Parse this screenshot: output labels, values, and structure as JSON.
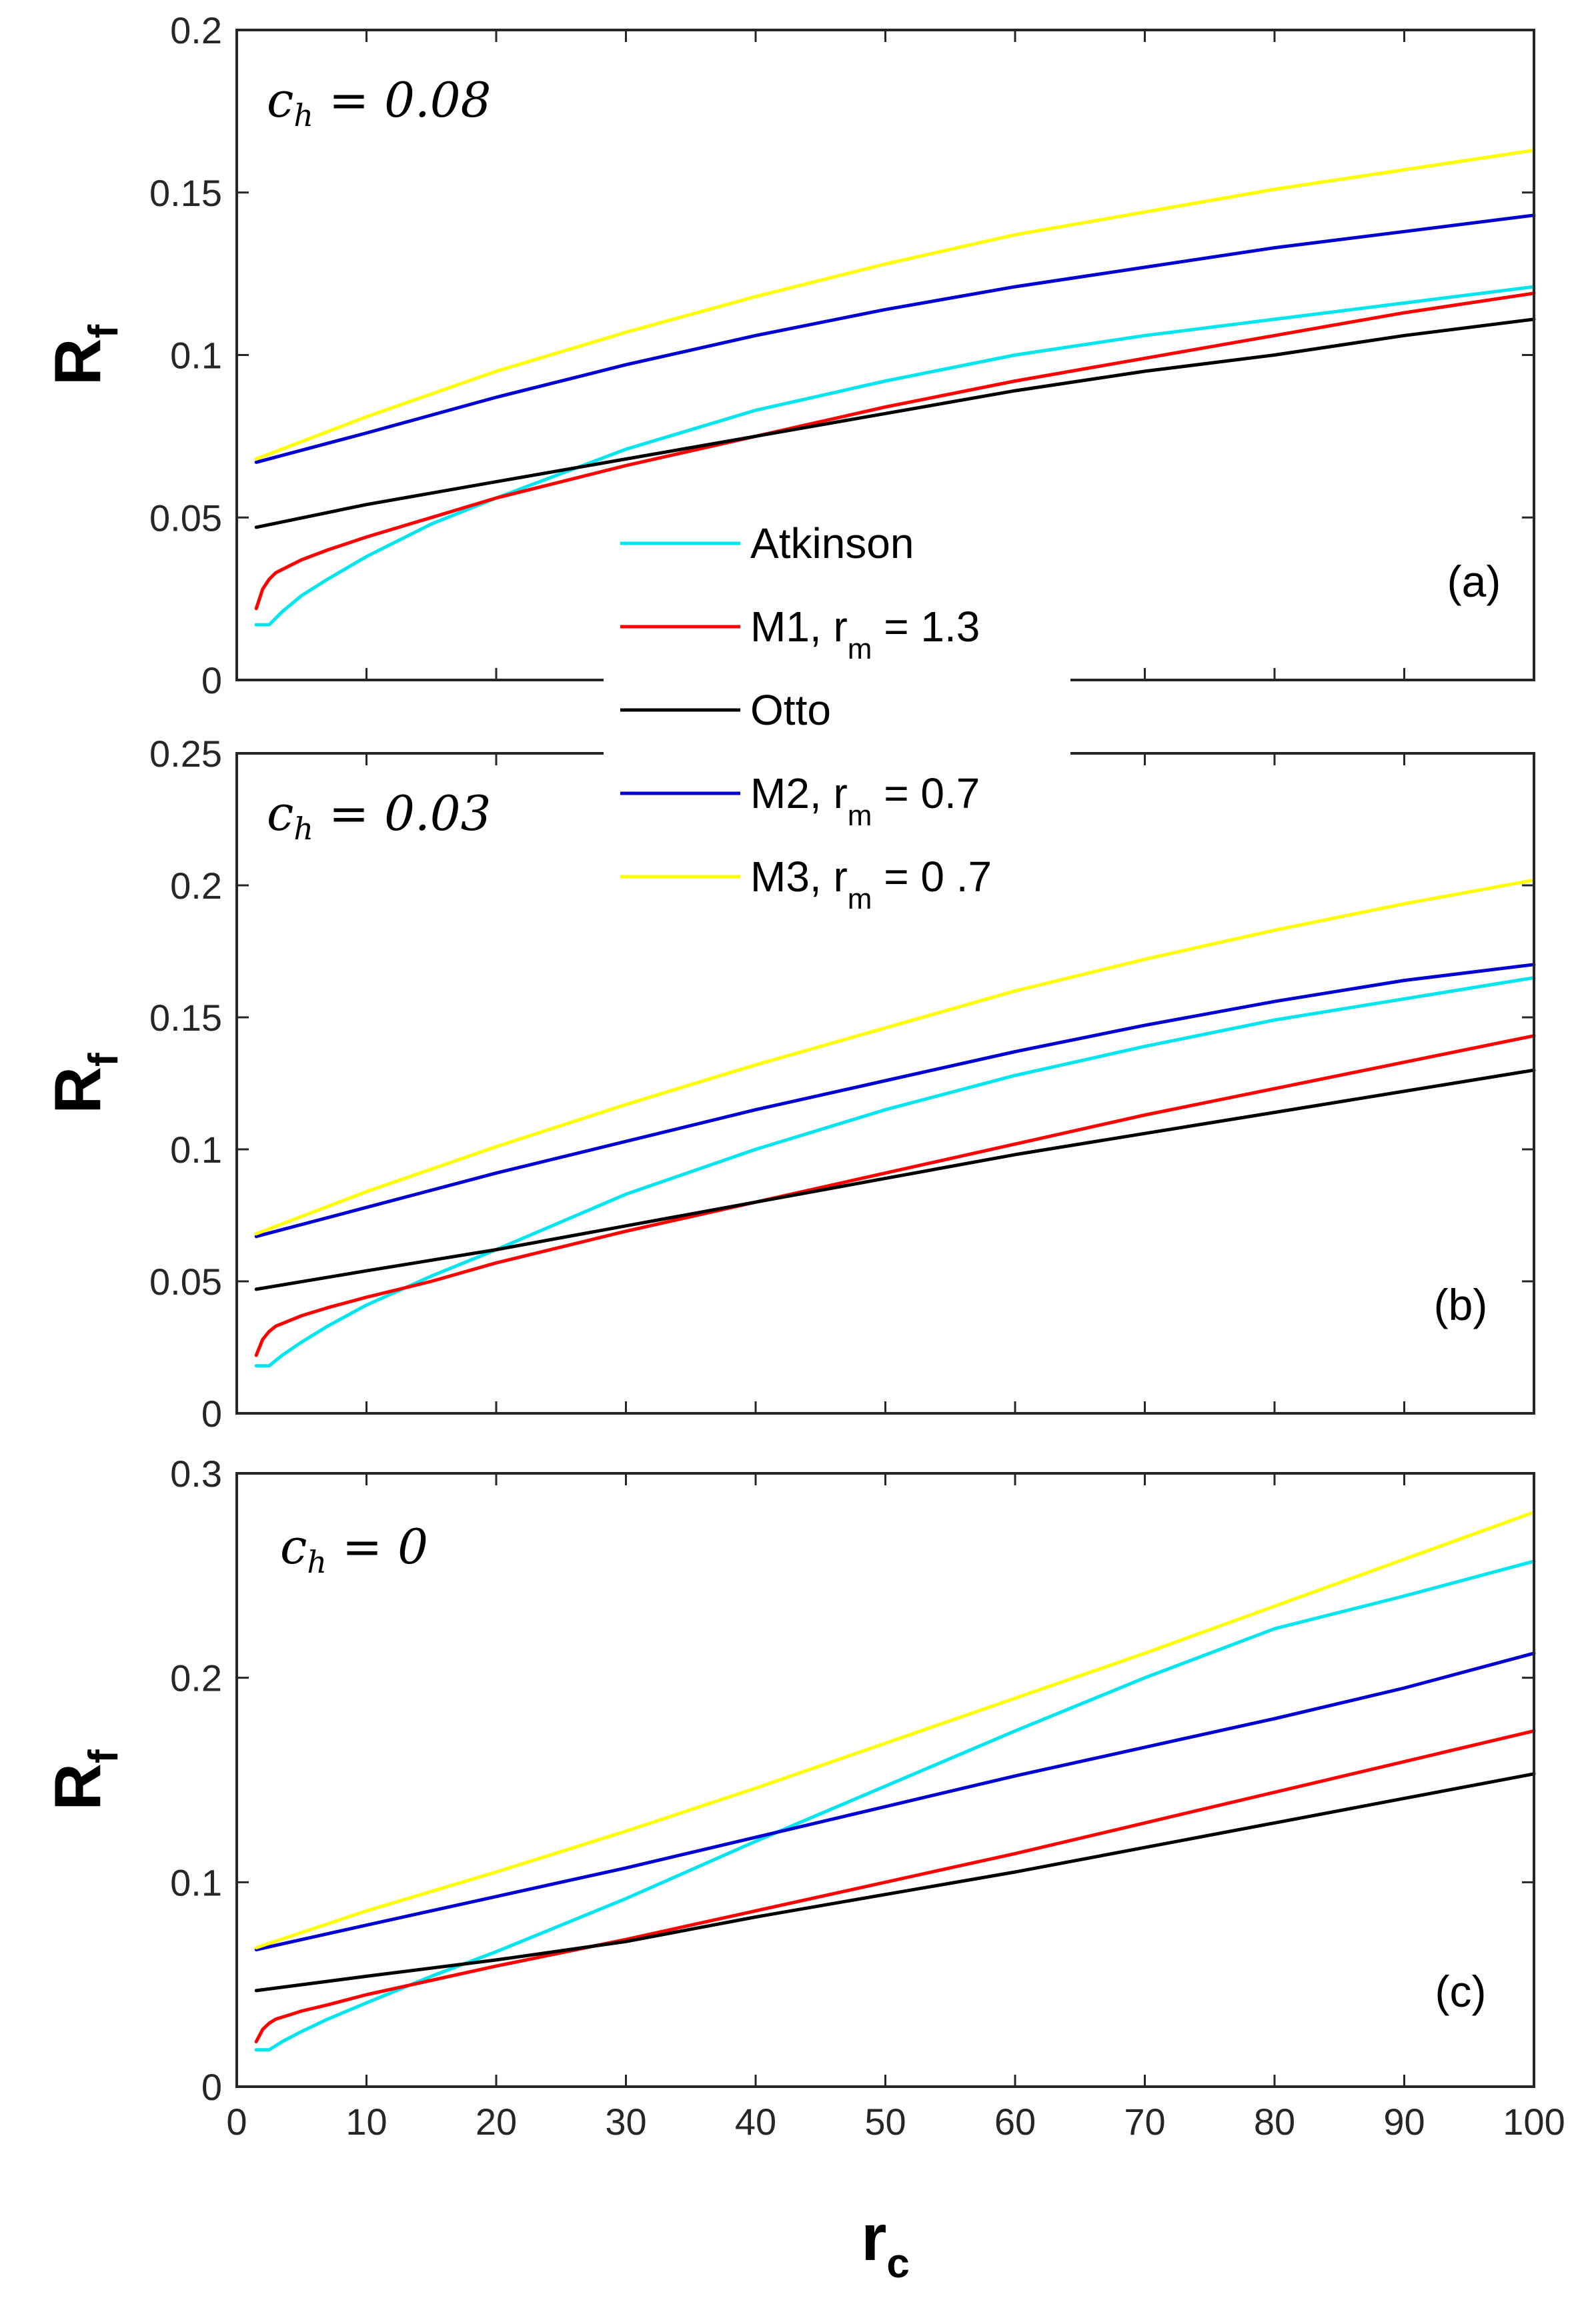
{
  "chart_data": [
    {
      "type": "line",
      "panel_label": "(a)",
      "annotation": {
        "var": "c",
        "sub": "h",
        "rest": " = 0.08"
      },
      "ylabel": {
        "main": "R",
        "sub": "f"
      },
      "xlabel": "",
      "xlim": [
        0,
        100
      ],
      "ylim": [
        0,
        0.2
      ],
      "yticks": [
        "0",
        "0.05",
        "0.1",
        "0.15",
        "0.2"
      ],
      "xticks": [],
      "series": [
        {
          "name": "Atkinson",
          "color": "#00e5ee",
          "x": [
            1.5,
            2.5,
            3.5,
            5,
            7,
            10,
            15,
            20,
            30,
            40,
            50,
            60,
            70,
            80,
            90,
            100
          ],
          "y": [
            0.017,
            0.017,
            0.021,
            0.026,
            0.031,
            0.038,
            0.048,
            0.056,
            0.071,
            0.083,
            0.092,
            0.1,
            0.106,
            0.111,
            0.116,
            0.121
          ]
        },
        {
          "name": "M1, r_m = 1.3",
          "color": "#ff0000",
          "x": [
            1.5,
            2,
            2.5,
            3,
            4,
            5,
            7,
            10,
            15,
            20,
            30,
            40,
            50,
            60,
            70,
            80,
            90,
            100
          ],
          "y": [
            0.022,
            0.028,
            0.031,
            0.033,
            0.035,
            0.037,
            0.04,
            0.044,
            0.05,
            0.056,
            0.066,
            0.075,
            0.084,
            0.092,
            0.099,
            0.106,
            0.113,
            0.119
          ]
        },
        {
          "name": "Otto",
          "color": "#000000",
          "x": [
            1.5,
            10,
            20,
            30,
            40,
            50,
            60,
            70,
            80,
            90,
            100
          ],
          "y": [
            0.047,
            0.054,
            0.061,
            0.068,
            0.075,
            0.082,
            0.089,
            0.095,
            0.1,
            0.106,
            0.111
          ]
        },
        {
          "name": "M2, r_m = 0.7",
          "color": "#0000d0",
          "x": [
            1.5,
            10,
            20,
            30,
            40,
            50,
            60,
            70,
            80,
            90,
            100
          ],
          "y": [
            0.067,
            0.076,
            0.087,
            0.097,
            0.106,
            0.114,
            0.121,
            0.127,
            0.133,
            0.138,
            0.143
          ]
        },
        {
          "name": "M3, r_m = 0 .7",
          "color": "#ffff00",
          "x": [
            1.5,
            10,
            20,
            30,
            40,
            50,
            60,
            70,
            80,
            90,
            100
          ],
          "y": [
            0.068,
            0.081,
            0.095,
            0.107,
            0.118,
            0.128,
            0.137,
            0.144,
            0.151,
            0.157,
            0.163
          ]
        }
      ]
    },
    {
      "type": "line",
      "panel_label": "(b)",
      "annotation": {
        "var": "c",
        "sub": "h",
        "rest": " = 0.03"
      },
      "ylabel": {
        "main": "R",
        "sub": "f"
      },
      "xlabel": "",
      "xlim": [
        0,
        100
      ],
      "ylim": [
        0,
        0.25
      ],
      "yticks": [
        "0",
        "0.05",
        "0.1",
        "0.15",
        "0.2",
        "0.25"
      ],
      "xticks": [],
      "series": [
        {
          "name": "Atkinson",
          "color": "#00e5ee",
          "x": [
            1.5,
            2.5,
            3.5,
            5,
            7,
            10,
            15,
            20,
            30,
            40,
            50,
            60,
            70,
            80,
            90,
            100
          ],
          "y": [
            0.018,
            0.018,
            0.022,
            0.027,
            0.033,
            0.041,
            0.052,
            0.062,
            0.083,
            0.1,
            0.115,
            0.128,
            0.139,
            0.149,
            0.157,
            0.165
          ]
        },
        {
          "name": "M1, r_m = 1.3",
          "color": "#ff0000",
          "x": [
            1.5,
            2,
            2.5,
            3,
            4,
            5,
            7,
            10,
            15,
            20,
            30,
            40,
            50,
            60,
            70,
            80,
            90,
            100
          ],
          "y": [
            0.022,
            0.028,
            0.031,
            0.033,
            0.035,
            0.037,
            0.04,
            0.044,
            0.05,
            0.057,
            0.069,
            0.08,
            0.091,
            0.102,
            0.113,
            0.123,
            0.133,
            0.143
          ]
        },
        {
          "name": "Otto",
          "color": "#000000",
          "x": [
            1.5,
            10,
            20,
            30,
            40,
            50,
            60,
            70,
            80,
            90,
            100
          ],
          "y": [
            0.047,
            0.054,
            0.062,
            0.071,
            0.08,
            0.089,
            0.098,
            0.106,
            0.114,
            0.122,
            0.13
          ]
        },
        {
          "name": "M2, r_m = 0.7",
          "color": "#0000d0",
          "x": [
            1.5,
            10,
            20,
            30,
            40,
            50,
            60,
            70,
            80,
            90,
            100
          ],
          "y": [
            0.067,
            0.078,
            0.091,
            0.103,
            0.115,
            0.126,
            0.137,
            0.147,
            0.156,
            0.164,
            0.17
          ]
        },
        {
          "name": "M3, r_m = 0 .7",
          "color": "#ffff00",
          "x": [
            1.5,
            10,
            20,
            30,
            40,
            50,
            60,
            70,
            80,
            90,
            100
          ],
          "y": [
            0.068,
            0.084,
            0.101,
            0.117,
            0.132,
            0.146,
            0.16,
            0.172,
            0.183,
            0.193,
            0.202
          ]
        }
      ]
    },
    {
      "type": "line",
      "panel_label": "(c)",
      "annotation": {
        "var": "c",
        "sub": "h",
        "rest": " = 0"
      },
      "ylabel": {
        "main": "R",
        "sub": "f"
      },
      "xlabel": {
        "main": "r",
        "sub": "c"
      },
      "xlim": [
        0,
        100
      ],
      "ylim": [
        0,
        0.3
      ],
      "yticks": [
        "0",
        "0.1",
        "0.2",
        "0.3"
      ],
      "xticks": [
        "0",
        "10",
        "20",
        "30",
        "40",
        "50",
        "60",
        "70",
        "80",
        "90",
        "100"
      ],
      "series": [
        {
          "name": "Atkinson",
          "color": "#00e5ee",
          "x": [
            1.5,
            2.5,
            3.5,
            5,
            7,
            10,
            15,
            20,
            30,
            40,
            50,
            60,
            70,
            80,
            90,
            100
          ],
          "y": [
            0.018,
            0.018,
            0.022,
            0.027,
            0.033,
            0.041,
            0.054,
            0.066,
            0.092,
            0.12,
            0.147,
            0.174,
            0.2,
            0.224,
            0.24,
            0.257
          ]
        },
        {
          "name": "M1, r_m = 1.3",
          "color": "#ff0000",
          "x": [
            1.5,
            2,
            2.5,
            3,
            4,
            5,
            7,
            10,
            15,
            20,
            30,
            40,
            50,
            60,
            70,
            80,
            90,
            100
          ],
          "y": [
            0.022,
            0.028,
            0.031,
            0.033,
            0.035,
            0.037,
            0.04,
            0.045,
            0.052,
            0.059,
            0.072,
            0.086,
            0.1,
            0.114,
            0.129,
            0.144,
            0.159,
            0.174
          ]
        },
        {
          "name": "Otto",
          "color": "#000000",
          "x": [
            1.5,
            10,
            20,
            30,
            40,
            50,
            60,
            70,
            80,
            90,
            100
          ],
          "y": [
            0.047,
            0.054,
            0.062,
            0.071,
            0.083,
            0.094,
            0.105,
            0.117,
            0.129,
            0.141,
            0.153
          ]
        },
        {
          "name": "M2, r_m = 0.7",
          "color": "#0000d0",
          "x": [
            1.5,
            10,
            20,
            30,
            40,
            50,
            60,
            70,
            80,
            90,
            100
          ],
          "y": [
            0.067,
            0.079,
            0.093,
            0.107,
            0.122,
            0.137,
            0.152,
            0.166,
            0.18,
            0.195,
            0.212
          ]
        },
        {
          "name": "M3, r_m = 0 .7",
          "color": "#ffff00",
          "x": [
            1.5,
            10,
            20,
            30,
            40,
            50,
            60,
            70,
            80,
            90,
            100
          ],
          "y": [
            0.068,
            0.086,
            0.105,
            0.125,
            0.146,
            0.168,
            0.19,
            0.212,
            0.235,
            0.258,
            0.281
          ]
        }
      ]
    }
  ],
  "legend": {
    "placement": "center, spanning panels (a) and (b)",
    "entries": [
      {
        "main": "Atkinson",
        "sub": "",
        "rest": "",
        "color": "#00e5ee"
      },
      {
        "main": "M1, r",
        "sub": "m",
        "rest": " = 1.3",
        "color": "#ff0000"
      },
      {
        "main": "Otto",
        "sub": "",
        "rest": "",
        "color": "#000000"
      },
      {
        "main": "M2, r",
        "sub": "m",
        "rest": " = 0.7",
        "color": "#0000d0"
      },
      {
        "main": "M3, r",
        "sub": "m",
        "rest": " = 0 .7",
        "color": "#ffff00"
      }
    ]
  }
}
